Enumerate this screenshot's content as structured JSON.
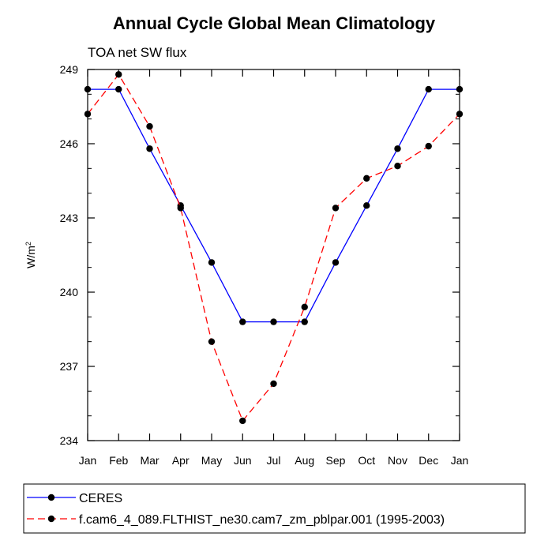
{
  "chart_data": {
    "type": "line",
    "title": "Annual Cycle Global Mean Climatology",
    "subtitle": "TOA net SW flux",
    "xlabel": "",
    "ylabel_base": "W/m",
    "ylabel_sup": "2",
    "categories": [
      "Jan",
      "Feb",
      "Mar",
      "Apr",
      "May",
      "Jun",
      "Jul",
      "Aug",
      "Sep",
      "Oct",
      "Nov",
      "Dec",
      "Jan"
    ],
    "ylim": [
      234,
      249
    ],
    "yticks": [
      234,
      237,
      240,
      243,
      246,
      249
    ],
    "legend_position": "bottom",
    "series": [
      {
        "name": "CERES",
        "color": "#0000ff",
        "dashed": false,
        "values": [
          248.2,
          248.2,
          245.8,
          243.5,
          241.2,
          238.8,
          238.8,
          238.8,
          241.2,
          243.5,
          245.8,
          248.2,
          248.2
        ]
      },
      {
        "name": "f.cam6_4_089.FLTHIST_ne30.cam7_zm_pblpar.001 (1995-2003)",
        "color": "#ff0000",
        "dashed": true,
        "values": [
          247.2,
          248.8,
          246.7,
          243.4,
          238.0,
          234.8,
          236.3,
          239.4,
          243.4,
          244.6,
          245.1,
          245.9,
          247.2
        ]
      }
    ]
  }
}
